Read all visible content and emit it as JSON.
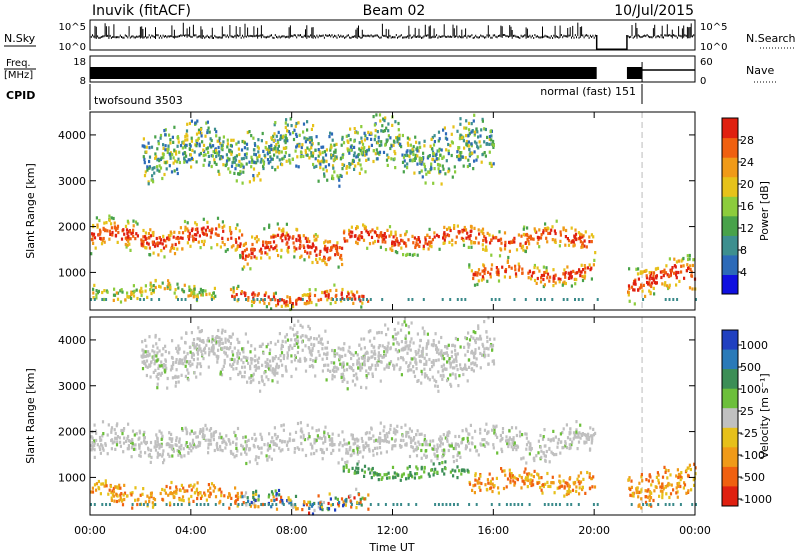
{
  "header": {
    "station": "Inuvik (fitACF)",
    "beam": "Beam 02",
    "date": "10/Jul/2015"
  },
  "top_panels": {
    "nsky_label": "N.Sky",
    "nsky_ticks": [
      "10^5",
      "10^0"
    ],
    "nsearch_label": "N.Search",
    "nsearch_ticks": [
      "10^5",
      "10^0"
    ],
    "freq_label": "Freq.",
    "freq_unit": "[MHz]",
    "freq_ticks": [
      "18",
      "8"
    ],
    "nave_label": "Nave",
    "nave_ticks": [
      "60",
      "0"
    ],
    "cpid_label": "CPID",
    "cpid_segments": [
      {
        "name": "twofsound 3503",
        "start_hr": 0,
        "end_hr": 21.9
      },
      {
        "name": "normal (fast) 151",
        "start_hr": 21.9,
        "end_hr": 24
      }
    ],
    "data_gap_hr": [
      20.1,
      21.3
    ]
  },
  "axes": {
    "x_label": "Time UT",
    "x_ticks": [
      "00:00",
      "04:00",
      "08:00",
      "12:00",
      "16:00",
      "20:00",
      "00:00"
    ],
    "x_range_hr": [
      0,
      24
    ],
    "y_label": "Slant Range [km]",
    "y_ticks": [
      "1000",
      "2000",
      "3000",
      "4000"
    ],
    "y_range_km": [
      180,
      4500
    ],
    "mode_change_hr": 21.9
  },
  "chart_data": [
    {
      "type": "heatmap",
      "parameter": "Power",
      "colorbar_label": "Power [dB]",
      "colorbar_ticks": [
        "4",
        "8",
        "12",
        "16",
        "20",
        "24",
        "28"
      ],
      "colorbar_range": [
        0,
        32
      ],
      "colors": [
        "#1010e0",
        "#2c6ab8",
        "#3d8f8f",
        "#48a24a",
        "#8ccc3c",
        "#e6c21a",
        "#f09a18",
        "#f06010",
        "#e02010"
      ],
      "scatter_bands": [
        {
          "t0": 0.0,
          "t1": 6.0,
          "r0": 1350,
          "r1": 2150,
          "level": "high"
        },
        {
          "t0": 6.0,
          "t1": 10.0,
          "r0": 1100,
          "r1": 2000,
          "level": "high"
        },
        {
          "t0": 10.0,
          "t1": 20.0,
          "r0": 1400,
          "r1": 2050,
          "level": "high"
        },
        {
          "t0": 0.0,
          "t1": 5.0,
          "r0": 350,
          "r1": 800,
          "level": "mid"
        },
        {
          "t0": 5.5,
          "t1": 11.0,
          "r0": 200,
          "r1": 650,
          "level": "high"
        },
        {
          "t0": 15.0,
          "t1": 20.0,
          "r0": 700,
          "r1": 1250,
          "level": "high"
        },
        {
          "t0": 21.3,
          "t1": 24.0,
          "r0": 400,
          "r1": 1300,
          "level": "high"
        },
        {
          "t0": 2.0,
          "t1": 16.0,
          "r0": 3000,
          "r1": 4300,
          "level": "low"
        }
      ]
    },
    {
      "type": "heatmap",
      "parameter": "Velocity",
      "colorbar_label": "Velocity [m s⁻¹]",
      "colorbar_ticks": [
        "1000",
        "500",
        "100",
        "25",
        "-25",
        "-100",
        "-500",
        "-1000"
      ],
      "colorbar_range": [
        -1200,
        1200
      ],
      "colors": [
        "#2040c0",
        "#2a7ab8",
        "#3c8e56",
        "#6cbf3a",
        "#c0c0c0",
        "#e6c01a",
        "#f09a18",
        "#f06010",
        "#e02010"
      ],
      "scatter_bands": [
        {
          "t0": 0.0,
          "t1": 20.0,
          "r0": 1350,
          "r1": 2150,
          "level": "ground"
        },
        {
          "t0": 0.0,
          "t1": 6.0,
          "r0": 350,
          "r1": 900,
          "level": "away"
        },
        {
          "t0": 6.0,
          "t1": 11.0,
          "r0": 200,
          "r1": 700,
          "level": "mixed"
        },
        {
          "t0": 10.0,
          "t1": 15.0,
          "r0": 900,
          "r1": 1300,
          "level": "toward"
        },
        {
          "t0": 15.0,
          "t1": 20.0,
          "r0": 600,
          "r1": 1200,
          "level": "away"
        },
        {
          "t0": 21.3,
          "t1": 24.0,
          "r0": 400,
          "r1": 1300,
          "level": "away"
        },
        {
          "t0": 2.0,
          "t1": 16.0,
          "r0": 3000,
          "r1": 4300,
          "level": "ground"
        }
      ]
    }
  ]
}
